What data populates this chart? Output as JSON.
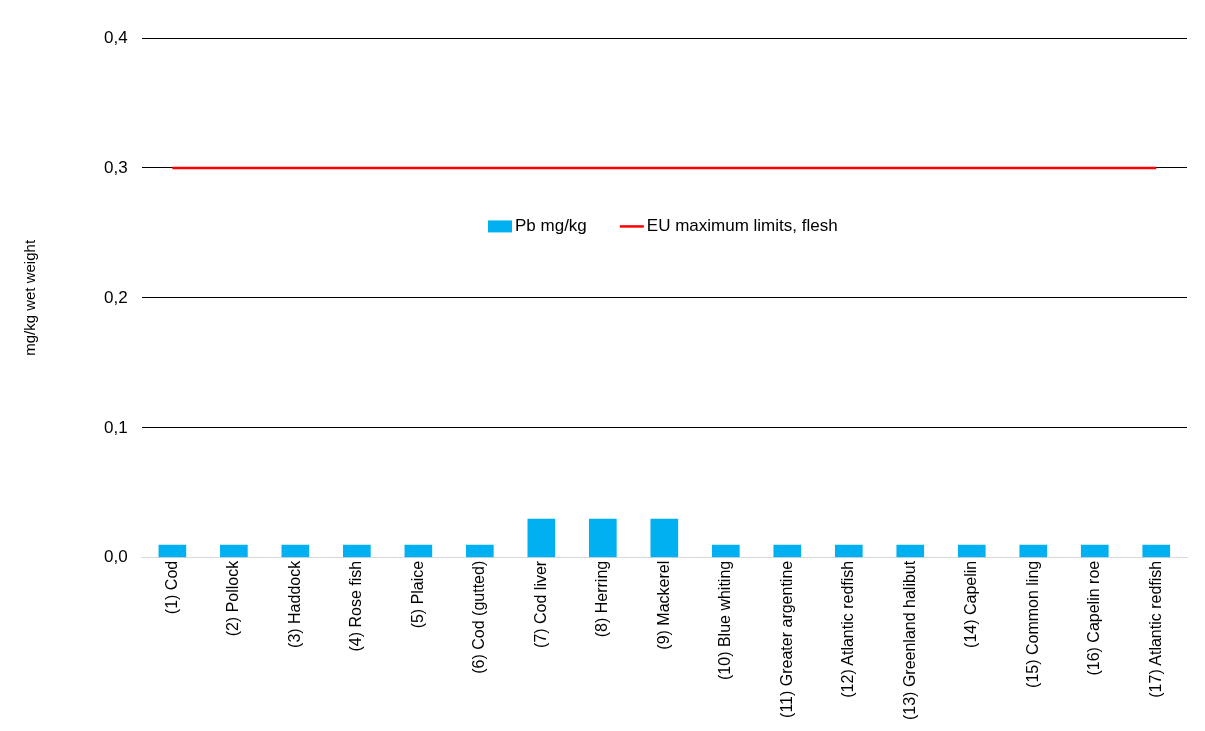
{
  "chart_data": {
    "type": "bar",
    "ylabel": "mg/kg wet weight",
    "categories": [
      "(1) Cod",
      "(2) Pollock",
      "(3) Haddock",
      "(4) Rose fish",
      "(5) Plaice",
      "(6) Cod (gutted)",
      "(7) Cod liver",
      "(8) Herring",
      "(9) Mackerel",
      "(10) Blue whiting",
      "(11) Greater argentine",
      "(12) Atlantic redfish",
      "(13) Greenland halibut",
      "(14) Capelin",
      "(15) Common ling",
      "(16) Capelin roe",
      "(17) Atlantic redfish"
    ],
    "series": [
      {
        "name": "Pb mg/kg",
        "color": "#00b0f0",
        "values": [
          0.01,
          0.01,
          0.01,
          0.01,
          0.01,
          0.01,
          0.03,
          0.03,
          0.03,
          0.01,
          0.01,
          0.01,
          0.01,
          0.01,
          0.01,
          0.01,
          0.01
        ]
      },
      {
        "name": "EU maximum limits, flesh",
        "type": "line",
        "color": "#ff0000",
        "marker": "none",
        "values": [
          0.3,
          0.3,
          0.3,
          0.3,
          0.3,
          0.3,
          0.3,
          0.3,
          0.3,
          0.3,
          0.3,
          0.3,
          0.3,
          0.3,
          0.3,
          0.3,
          0.3
        ]
      }
    ],
    "ylim": [
      0,
      0.4
    ],
    "yticks": [
      {
        "value": 0,
        "label": "0,0"
      },
      {
        "value": 0.1,
        "label": "0,1"
      },
      {
        "value": 0.2,
        "label": "0,2"
      },
      {
        "value": 0.3,
        "label": "0,3"
      },
      {
        "value": 0.4,
        "label": "0,4"
      }
    ],
    "grid": "y",
    "legend": "top"
  }
}
